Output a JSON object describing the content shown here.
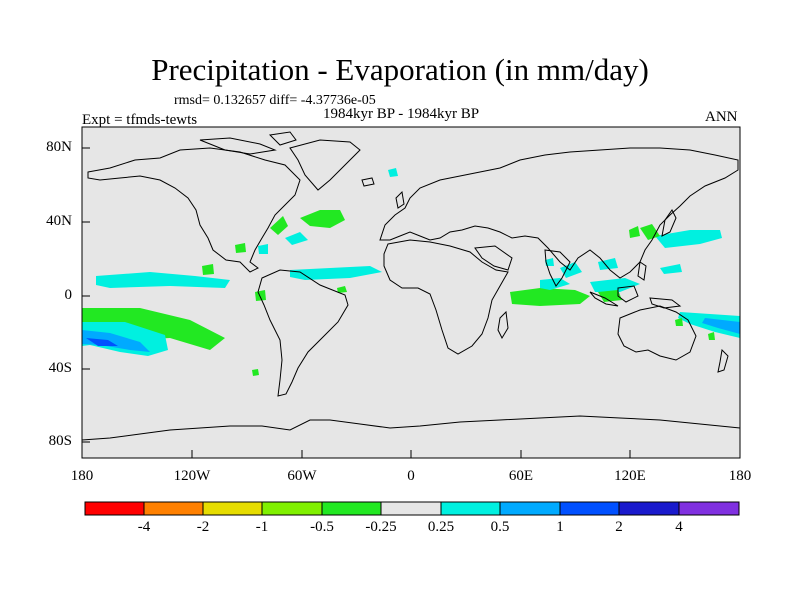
{
  "title": "Precipitation - Evaporation (in mm/day)",
  "stats": "rmsd= 0.132657  diff= -4.37736e-05",
  "period": "1984kyr BP - 1984kyr BP",
  "experiment": "Expt = tfmds-tewts",
  "season": "ANN",
  "map": {
    "lat_ticks": [
      "80N",
      "40N",
      "0",
      "40S",
      "80S"
    ],
    "lon_ticks": [
      "180",
      "120W",
      "60W",
      "0",
      "60E",
      "120E",
      "180"
    ],
    "background_color": "#e6e6e6"
  },
  "colorbar": {
    "colors": [
      "#ff0000",
      "#ff8000",
      "#e6dc00",
      "#80f000",
      "#22e822",
      "#e6e6e6",
      "#00f0e0",
      "#00aaff",
      "#0050ff",
      "#1a1acc",
      "#8030e0"
    ],
    "labels": [
      "-4",
      "-2",
      "-1",
      "-0.5",
      "-0.25",
      "0.25",
      "0.5",
      "1",
      "2",
      "4"
    ]
  },
  "anomalies": [
    {
      "region": "tropical Pacific south",
      "color": "#22e822"
    },
    {
      "region": "tropical Pacific south",
      "color": "#00f0e0"
    },
    {
      "region": "tropical Pacific south",
      "color": "#00aaff"
    },
    {
      "region": "north Atlantic",
      "color": "#22e822"
    },
    {
      "region": "north Atlantic",
      "color": "#00f0e0"
    },
    {
      "region": "equatorial Atlantic",
      "color": "#00f0e0"
    },
    {
      "region": "Indian Ocean",
      "color": "#22e822"
    },
    {
      "region": "Indian Ocean",
      "color": "#00f0e0"
    },
    {
      "region": "north Pacific",
      "color": "#00f0e0"
    },
    {
      "region": "east Pacific",
      "color": "#00f0e0"
    },
    {
      "region": "Australia east",
      "color": "#00f0e0"
    },
    {
      "region": "Australia east",
      "color": "#00aaff"
    }
  ]
}
